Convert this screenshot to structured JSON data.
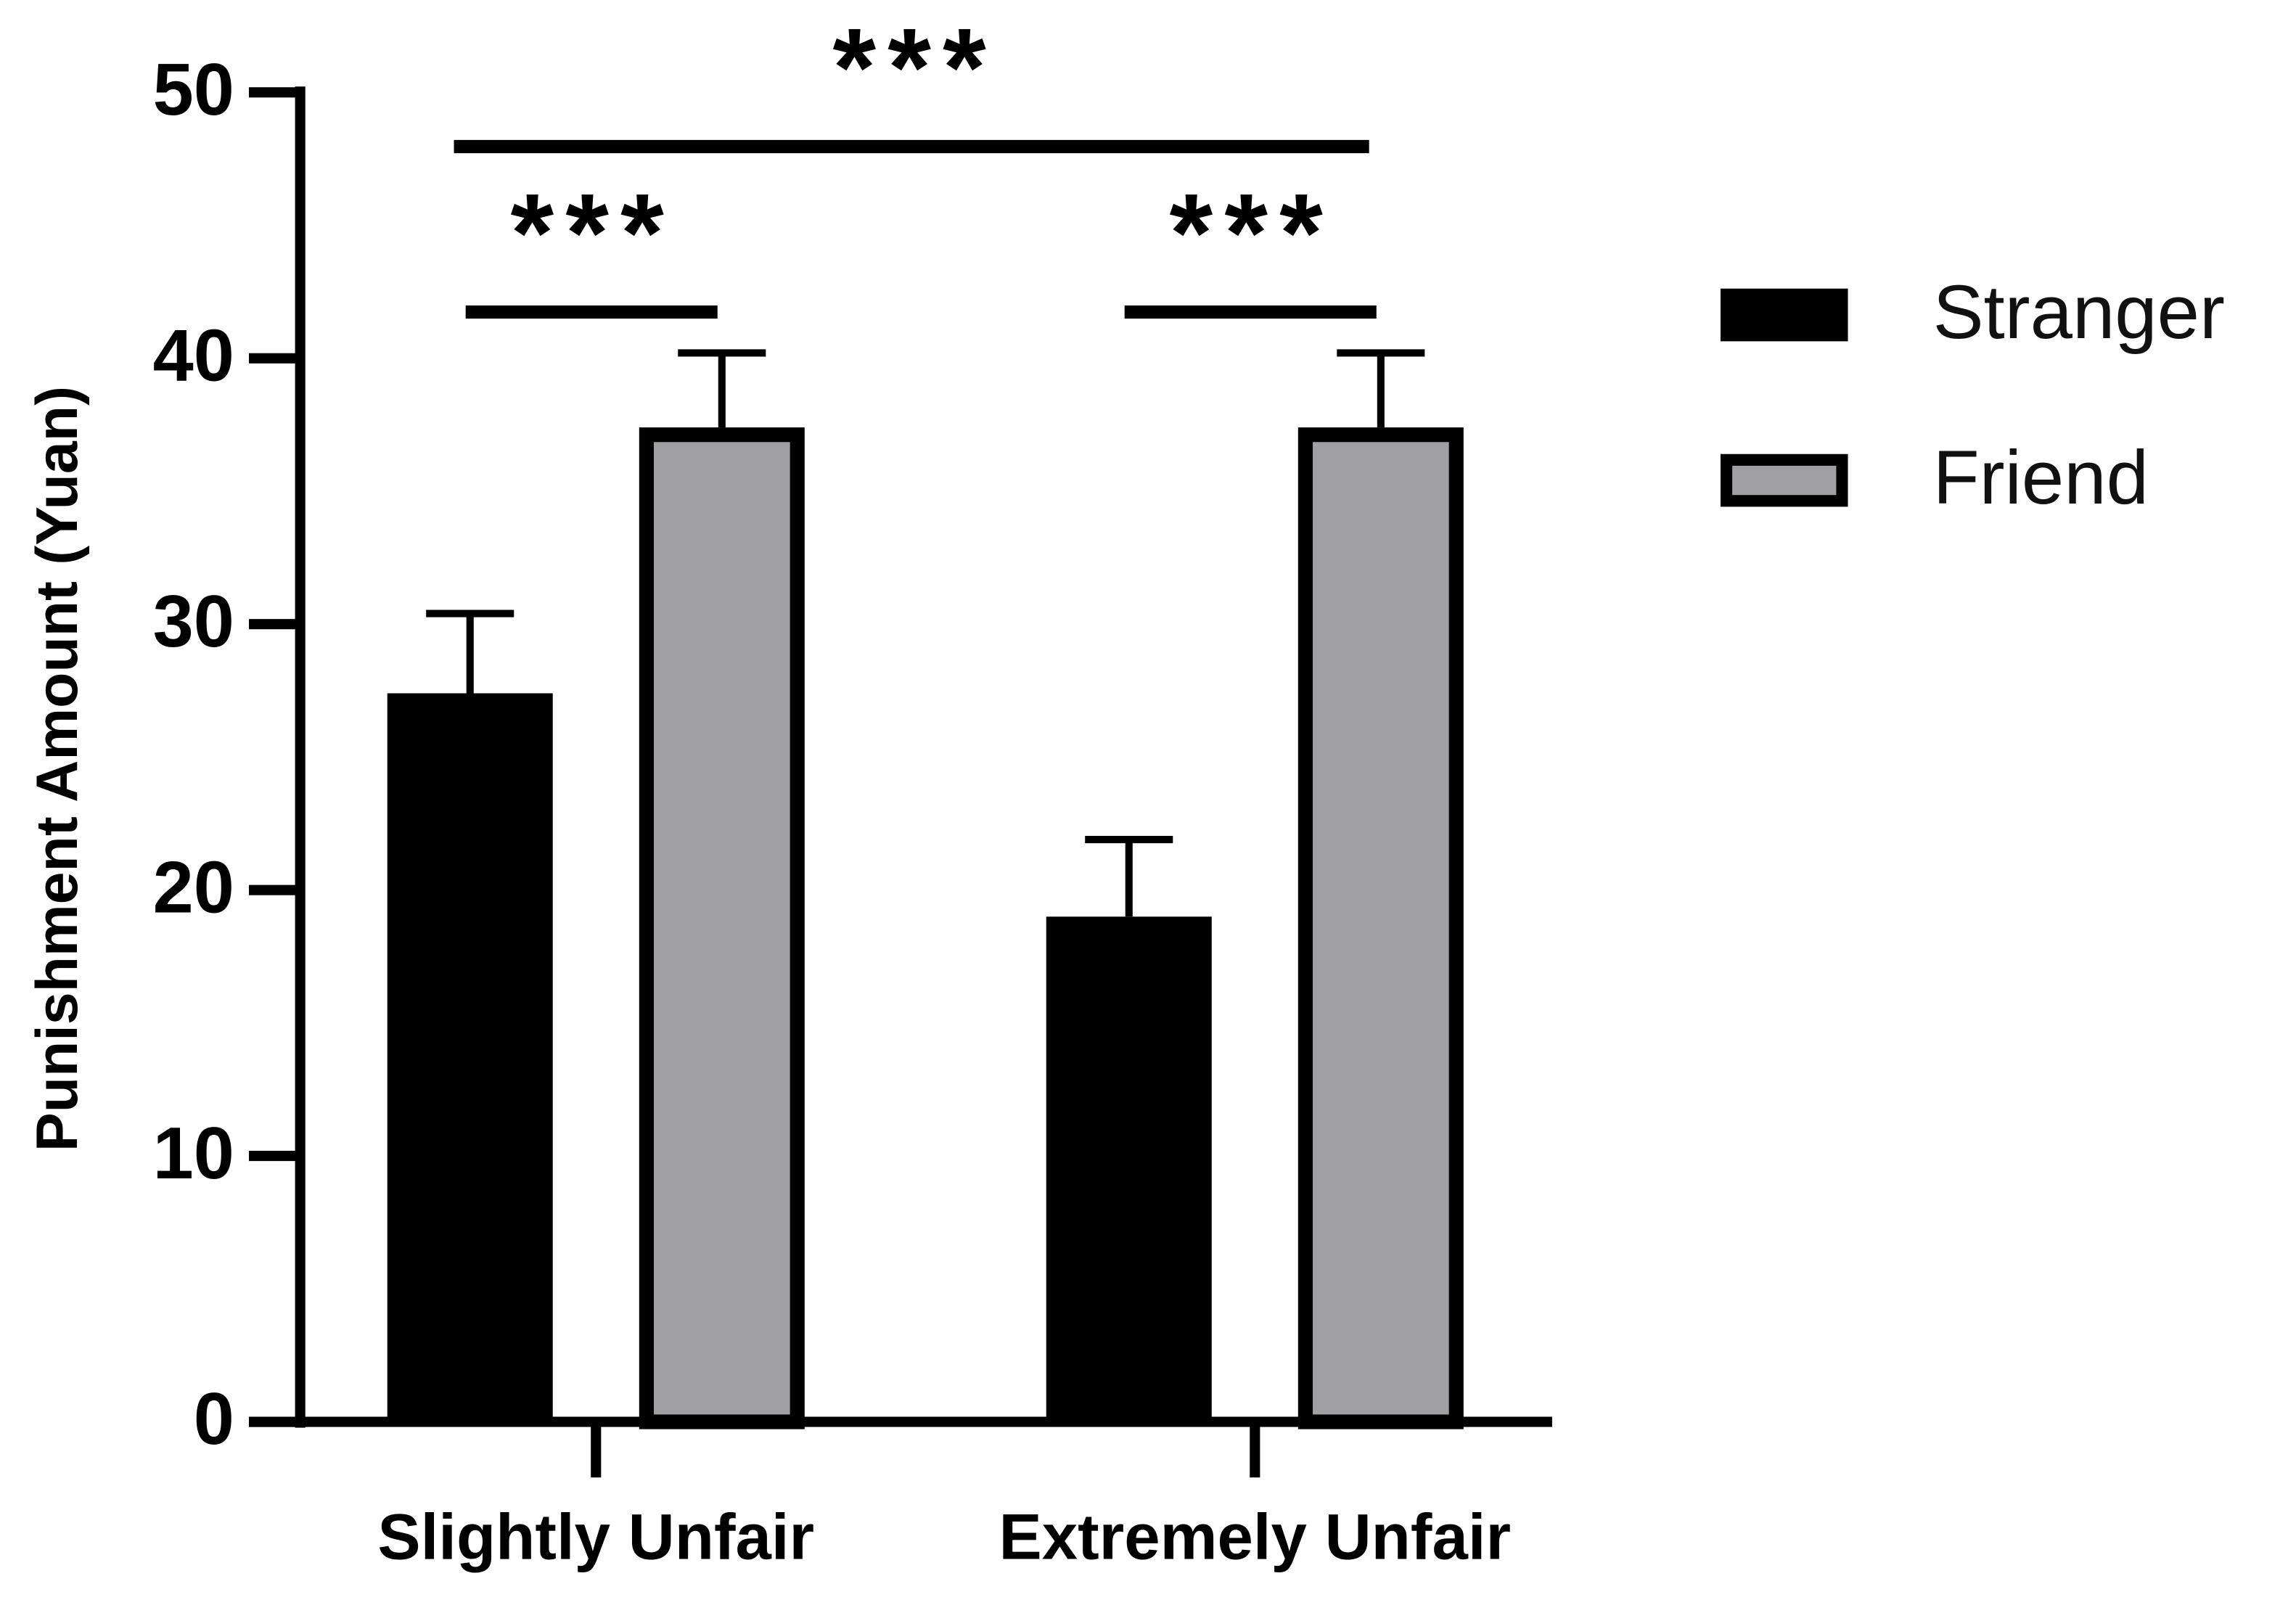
{
  "chart_data": {
    "type": "bar",
    "y_label": "Punishment Amount (Yuan)",
    "categories": [
      "Slightly Unfair",
      "Extremely Unfair"
    ],
    "series": [
      {
        "name": "Stranger",
        "color": "#000000",
        "values": [
          27.4,
          19.0
        ],
        "errors": [
          3.0,
          2.9
        ]
      },
      {
        "name": "Friend",
        "color": "#a0a0a2",
        "edge_color": "#000000",
        "values": [
          37.4,
          37.4
        ],
        "errors": [
          2.8,
          2.8
        ]
      }
    ],
    "ylim": [
      0,
      50
    ],
    "yticks": [
      0,
      10,
      20,
      30,
      40,
      50
    ],
    "legend": "right",
    "annotations": [
      {
        "text": "***"
      },
      {
        "text": "***"
      },
      {
        "text": "***"
      }
    ]
  }
}
